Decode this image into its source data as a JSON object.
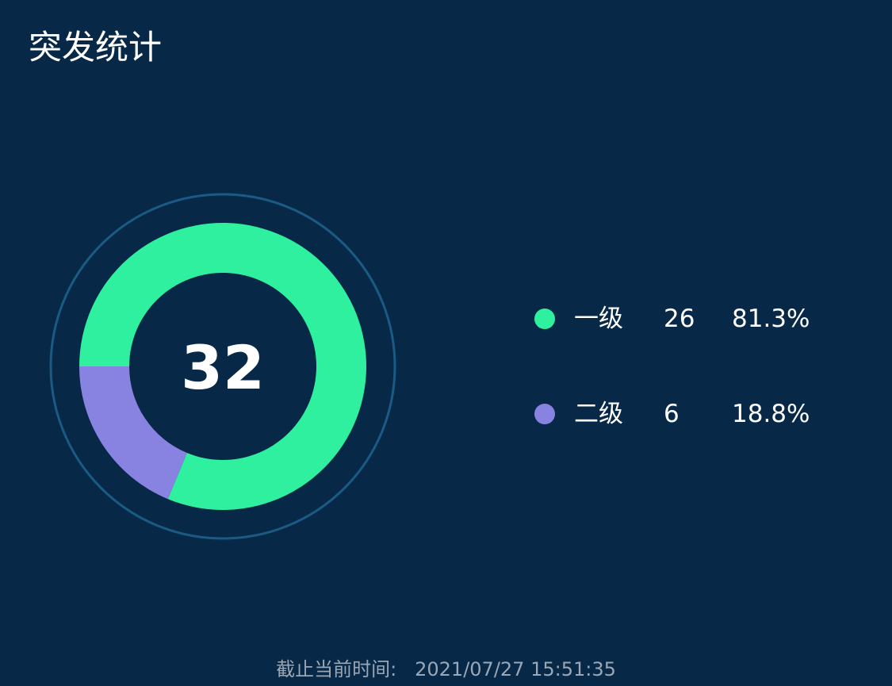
{
  "title": "突发统计",
  "colors": {
    "background": "#072846",
    "outer_ring": "#1a5b86",
    "level1": "#2ff09f",
    "level2": "#8883e0"
  },
  "chart_data": {
    "type": "pie",
    "variant": "donut",
    "total": "32",
    "slices": [
      {
        "label": "一级",
        "value": 26,
        "value_text": "26",
        "percent": "81.3%",
        "color": "#2ff09f"
      },
      {
        "label": "二级",
        "value": 6,
        "value_text": "6",
        "percent": "18.8%",
        "color": "#8883e0"
      }
    ],
    "legend_position": "right"
  },
  "footer": {
    "label": "截止当前时间:",
    "datetime": "2021/07/27 15:51:35"
  }
}
